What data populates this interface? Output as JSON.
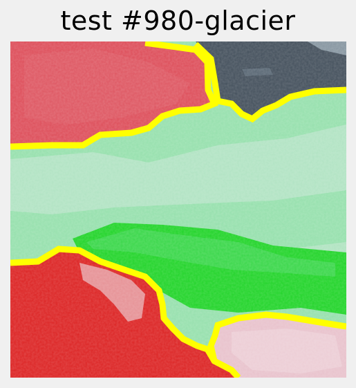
{
  "title": "test #980-glacier",
  "colors": {
    "background": "#f0f0f0",
    "boundary": "#ffff00",
    "region_red_top": "#dd4e5a",
    "region_dark": "#44505c",
    "region_green_light": "#8fe2a6",
    "region_green_bright": "#1bd41b",
    "region_red_bottom": "#dc2424",
    "region_pink": "#e8c2cc"
  },
  "icons": [
    "segmentation-image"
  ]
}
